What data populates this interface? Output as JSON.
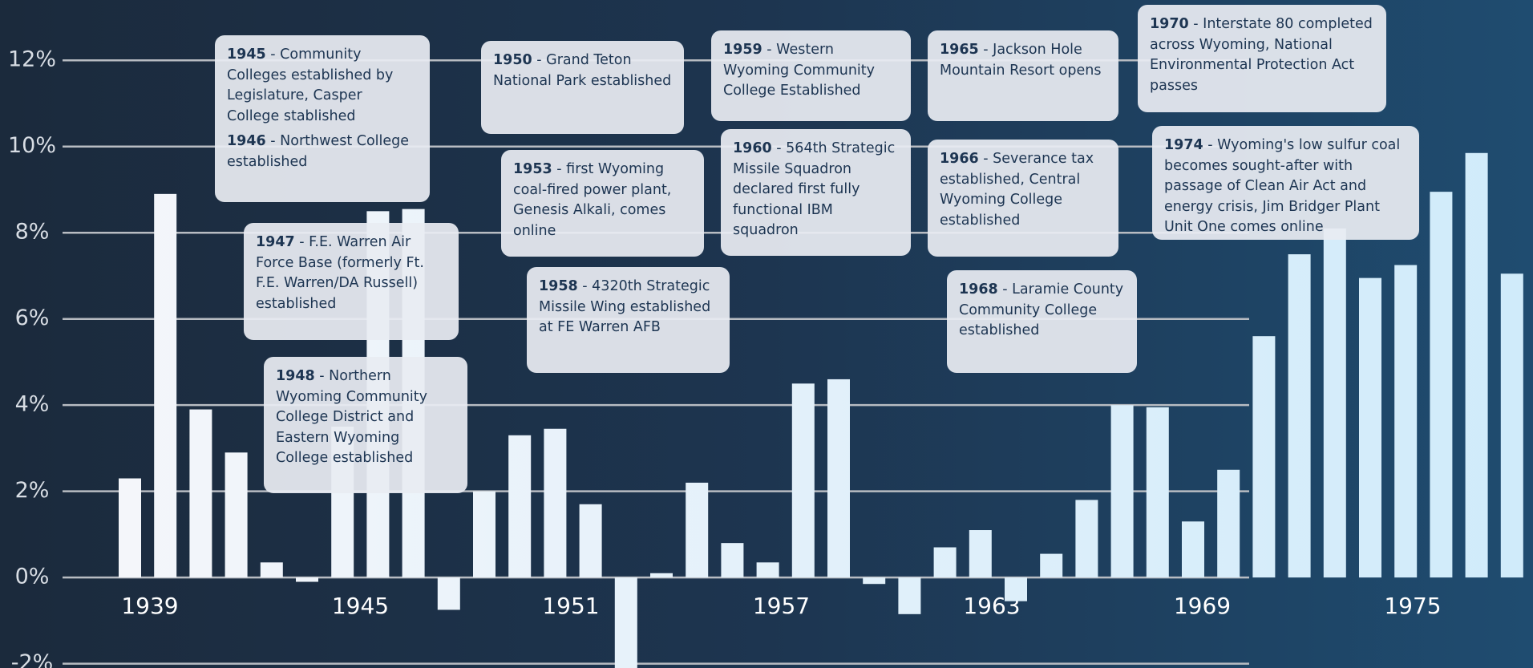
{
  "chart_data": {
    "type": "bar",
    "categories": [
      "1939",
      null,
      null,
      null,
      null,
      null,
      "1945",
      null,
      null,
      null,
      null,
      null,
      "1951",
      null,
      null,
      null,
      null,
      null,
      "1957",
      null,
      null,
      null,
      null,
      null,
      "1963",
      null,
      null,
      null,
      null,
      null,
      "1969",
      null,
      null,
      null,
      null,
      null,
      "1975",
      null,
      null,
      null
    ],
    "values": [
      2.3,
      8.9,
      3.9,
      2.9,
      0.35,
      -0.1,
      3.5,
      8.5,
      8.55,
      -0.75,
      2.0,
      3.3,
      3.45,
      1.7,
      -2.1,
      0.1,
      2.2,
      0.8,
      0.35,
      4.5,
      4.6,
      -0.15,
      -0.85,
      0.7,
      1.1,
      -0.55,
      0.55,
      1.8,
      4.0,
      3.95,
      1.3,
      2.5,
      5.6,
      7.5,
      8.1,
      6.95,
      7.25,
      8.95,
      9.85,
      7.05
    ],
    "color": "#f5f6fa",
    "color_end": "#d0ebfa",
    "ylim": [
      -2.1,
      13.4
    ],
    "yticks": [
      {
        "value": -2,
        "label": "-2%"
      },
      {
        "value": 0,
        "label": "0%"
      },
      {
        "value": 2,
        "label": "2%"
      },
      {
        "value": 4,
        "label": "4%"
      },
      {
        "value": 6,
        "label": "6%"
      },
      {
        "value": 8,
        "label": "8%"
      },
      {
        "value": 10,
        "label": "10%"
      },
      {
        "value": 12,
        "label": "12%"
      }
    ],
    "grid": true,
    "annotations": [
      {
        "year": "1945",
        "text": "- Community Colleges established by Legislature, Casper College stablished"
      },
      {
        "year": "1946",
        "text": "- Northwest College established"
      },
      {
        "year": "1947",
        "text": "- F.E. Warren Air Force Base (formerly Ft. F.E. Warren/DA Russell) established"
      },
      {
        "year": "1948",
        "text": "- Northern Wyoming Community College District and Eastern Wyoming College established"
      },
      {
        "year": "1950",
        "text": "- Grand Teton National Park established"
      },
      {
        "year": "1953",
        "text": "- first Wyoming coal-fired power plant, Genesis Alkali, comes online"
      },
      {
        "year": "1958",
        "text": "- 4320th Strategic Missile Wing established at FE Warren AFB"
      },
      {
        "year": "1959",
        "text": "- Western Wyoming Community College Established"
      },
      {
        "year": "1960",
        "text": "- 564th Strategic Missile Squadron declared first fully functional IBM squadron"
      },
      {
        "year": "1965",
        "text": "- Jackson Hole Mountain Resort opens"
      },
      {
        "year": "1966",
        "text": "- Severance tax established, Central Wyoming College established"
      },
      {
        "year": "1968",
        "text": "- Laramie County Community College established"
      },
      {
        "year": "1970",
        "text": "- Interstate 80 completed across Wyoming, National Environmental Protection Act passes"
      },
      {
        "year": "1974",
        "text": "- Wyoming's low sulfur coal becomes sought-after with passage of Clean Air Act and energy crisis, Jim Bridger Plant Unit One comes online"
      }
    ]
  }
}
